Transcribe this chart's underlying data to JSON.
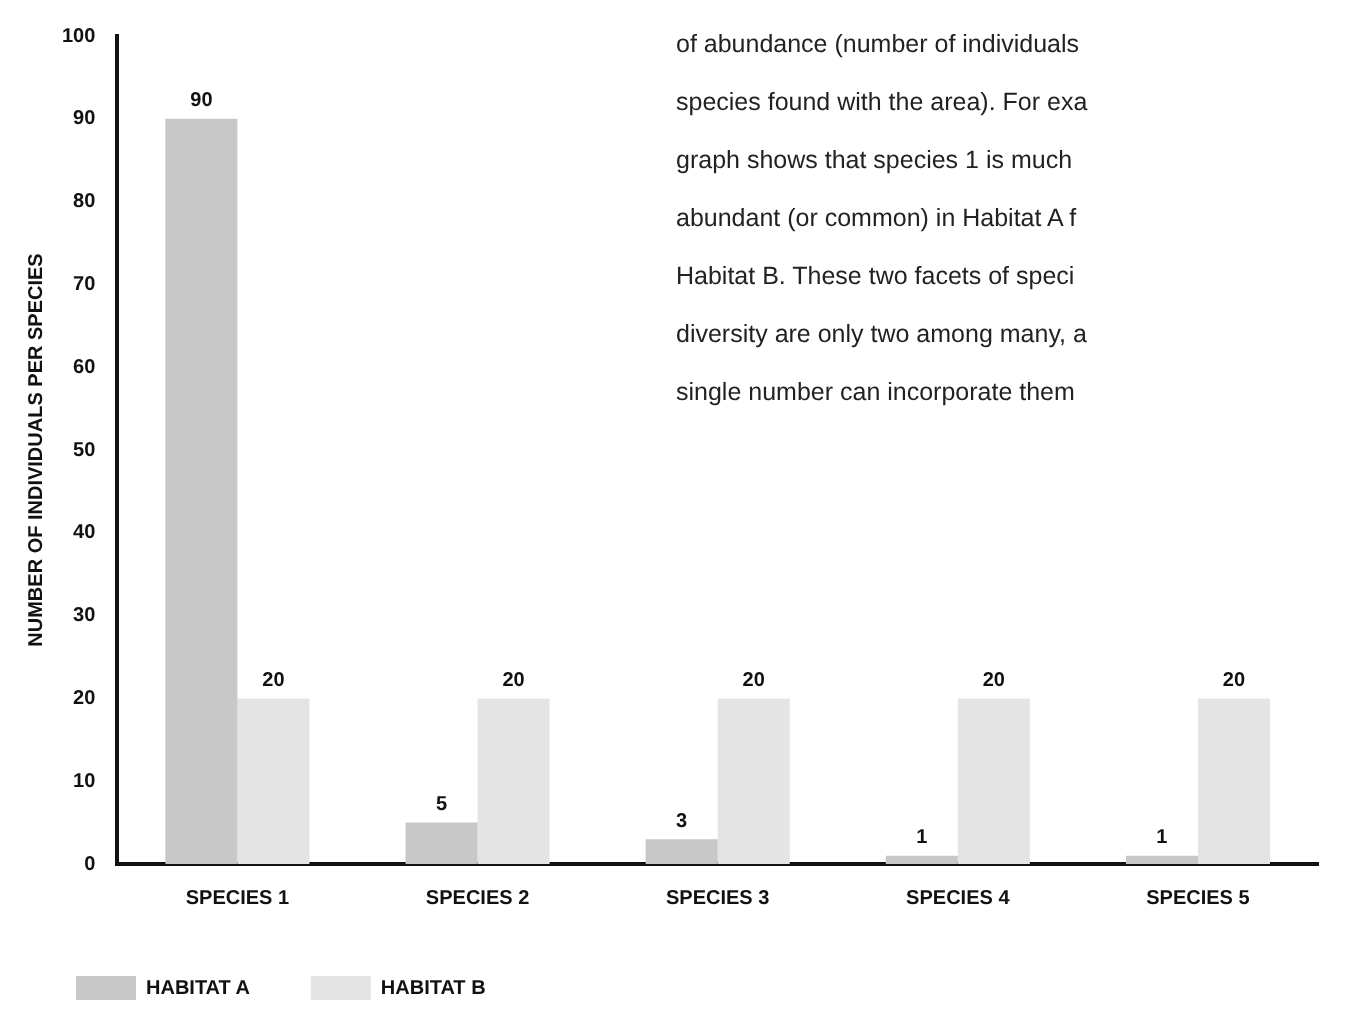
{
  "chart_data": {
    "type": "bar",
    "ylabel": "NUMBER OF INDIVIDUALS PER SPECIES",
    "categories": [
      "SPECIES 1",
      "SPECIES 2",
      "SPECIES 3",
      "SPECIES 4",
      "SPECIES 5"
    ],
    "series": [
      {
        "name": "HABITAT A",
        "color": "#c8c8c8",
        "values": [
          90,
          5,
          3,
          1,
          1
        ]
      },
      {
        "name": "HABITAT B",
        "color": "#e4e4e4",
        "values": [
          20,
          20,
          20,
          20,
          20
        ]
      }
    ],
    "ylim": [
      0,
      100
    ],
    "yticks": [
      0,
      10,
      20,
      30,
      40,
      50,
      60,
      70,
      80,
      90,
      100
    ],
    "grid": false,
    "legend": "bottom left",
    "data_labels": true,
    "annotations": [
      "of abundance (number of individuals",
      "species found with the area). For exa",
      "graph shows that species 1 is much",
      "abundant (or common) in Habitat A f",
      "Habitat B. These two facets of speci",
      "diversity are only two among many, a",
      "single number can incorporate them"
    ]
  }
}
